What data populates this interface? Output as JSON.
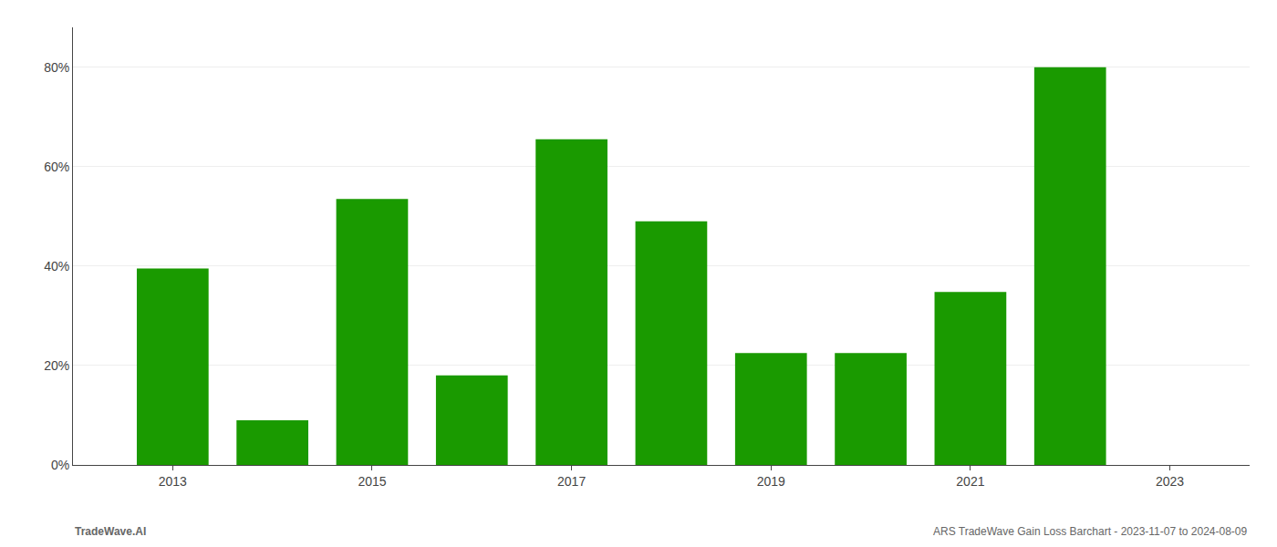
{
  "chart_data": {
    "type": "bar",
    "x": [
      2013,
      2014,
      2015,
      2016,
      2017,
      2018,
      2019,
      2020,
      2021,
      2022
    ],
    "values": [
      0.395,
      0.09,
      0.535,
      0.18,
      0.655,
      0.49,
      0.225,
      0.225,
      0.348,
      0.8
    ],
    "color": "#1a9a00",
    "xlim": [
      2012.0,
      2023.8
    ],
    "xticks": [
      2013,
      2015,
      2017,
      2019,
      2021,
      2023
    ],
    "ylim": [
      0,
      0.88
    ],
    "yticks": [
      {
        "value": 0.0,
        "label": "0%"
      },
      {
        "value": 0.2,
        "label": "20%"
      },
      {
        "value": 0.4,
        "label": "40%"
      },
      {
        "value": 0.6,
        "label": "60%"
      },
      {
        "value": 0.8,
        "label": "80%"
      }
    ],
    "grid": true,
    "annotations": [
      "TradeWave.AI",
      "ARS TradeWave Gain Loss Barchart - 2023-11-07 to 2024-08-09"
    ]
  }
}
